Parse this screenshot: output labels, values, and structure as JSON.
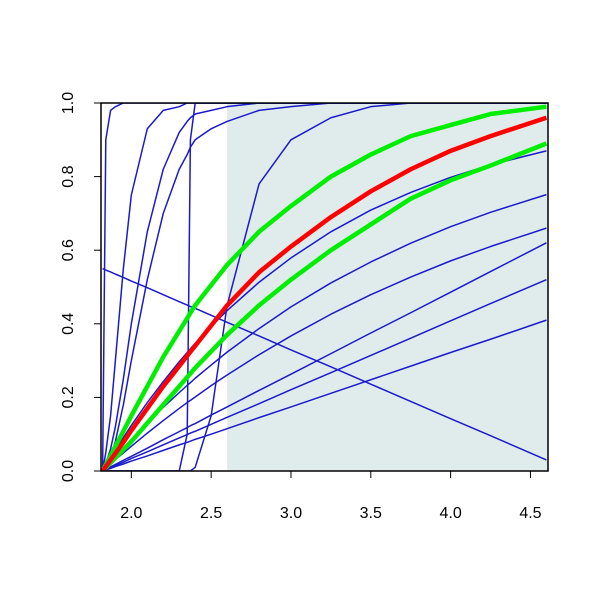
{
  "chart_data": {
    "type": "line",
    "x": [
      1.82,
      1.84,
      1.87,
      1.9,
      1.95,
      2.0,
      2.1,
      2.2,
      2.3,
      2.35,
      2.37,
      2.4,
      2.5,
      2.6,
      2.8,
      3.0,
      3.25,
      3.5,
      3.75,
      4.0,
      4.25,
      4.6
    ],
    "xlim": [
      1.81,
      4.61
    ],
    "ylim": [
      0,
      1
    ],
    "xticks": [
      {
        "value": 2,
        "label": "2.0"
      },
      2.5,
      {
        "value": 3,
        "label": "3.0"
      },
      3.5,
      {
        "value": 4,
        "label": "4.0"
      },
      4.5
    ],
    "yticks": [
      {
        "value": 0,
        "label": "0.0"
      },
      0.2,
      0.4,
      0.6,
      0.8,
      {
        "value": 1,
        "label": "1.0"
      }
    ],
    "shade_from": 2.6,
    "shade_color": "#e0ecec",
    "series": [
      {
        "color": "#1a1acc",
        "width": 1.5,
        "values": [
          0,
          0.9,
          0.98,
          0.99,
          1,
          1,
          1,
          1,
          1,
          1,
          1,
          1,
          1,
          1,
          1,
          1,
          1,
          1,
          1,
          1,
          1,
          1
        ]
      },
      {
        "color": "#1a1acc",
        "width": 1.5,
        "values": [
          0,
          0.05,
          0.15,
          0.3,
          0.55,
          0.75,
          0.93,
          0.98,
          0.99,
          1,
          1,
          1,
          1,
          1,
          1,
          1,
          1,
          1,
          1,
          1,
          1,
          1
        ]
      },
      {
        "color": "#1a1acc",
        "width": 1.5,
        "values": [
          0,
          0.02,
          0.06,
          0.12,
          0.25,
          0.4,
          0.65,
          0.82,
          0.92,
          0.95,
          0.96,
          0.97,
          0.98,
          0.99,
          1,
          1,
          1,
          1,
          1,
          1,
          1,
          1
        ]
      },
      {
        "color": "#1a1acc",
        "width": 1.5,
        "values": [
          0,
          0.01,
          0.04,
          0.08,
          0.18,
          0.3,
          0.52,
          0.7,
          0.82,
          0.86,
          0.88,
          0.9,
          0.93,
          0.95,
          0.98,
          0.99,
          1,
          1,
          1,
          1,
          1,
          1
        ]
      },
      {
        "color": "#1a1acc",
        "width": 1.5,
        "values": [
          0,
          0,
          0,
          0,
          0,
          0,
          0,
          0,
          0,
          0.1,
          0.9,
          1,
          1,
          1,
          1,
          1,
          1,
          1,
          1,
          1,
          1,
          1
        ]
      },
      {
        "color": "#1a1acc",
        "width": 1.5,
        "values": [
          0,
          0,
          0,
          0,
          0,
          0,
          0,
          0,
          0,
          0,
          0,
          0.01,
          0.15,
          0.45,
          0.78,
          0.9,
          0.96,
          0.99,
          1,
          1,
          1,
          1
        ]
      },
      {
        "color": "#1a1acc",
        "width": 1.5,
        "values": [
          0.55,
          0.546,
          0.541,
          0.535,
          0.526,
          0.516,
          0.498,
          0.479,
          0.46,
          0.451,
          0.447,
          0.442,
          0.423,
          0.404,
          0.367,
          0.329,
          0.283,
          0.236,
          0.189,
          0.142,
          0.096,
          0.03
        ]
      },
      {
        "color": "#1a1acc",
        "width": 1.5,
        "values": [
          0,
          0.003,
          0.007,
          0.012,
          0.019,
          0.027,
          0.041,
          0.056,
          0.071,
          0.078,
          0.081,
          0.086,
          0.1,
          0.115,
          0.145,
          0.174,
          0.211,
          0.248,
          0.285,
          0.322,
          0.358,
          0.41
        ]
      },
      {
        "color": "#1a1acc",
        "width": 1.5,
        "values": [
          0,
          0.004,
          0.009,
          0.015,
          0.024,
          0.034,
          0.052,
          0.071,
          0.09,
          0.099,
          0.103,
          0.108,
          0.127,
          0.146,
          0.183,
          0.221,
          0.267,
          0.314,
          0.361,
          0.408,
          0.455,
          0.52
        ]
      },
      {
        "color": "#1a1acc",
        "width": 1.5,
        "values": [
          0,
          0.004,
          0.011,
          0.018,
          0.029,
          0.04,
          0.062,
          0.085,
          0.107,
          0.118,
          0.123,
          0.129,
          0.152,
          0.174,
          0.219,
          0.263,
          0.319,
          0.375,
          0.43,
          0.486,
          0.542,
          0.62
        ]
      },
      {
        "color": "#1a1acc",
        "width": 1.5,
        "values": [
          0,
          0.008,
          0.019,
          0.031,
          0.049,
          0.067,
          0.103,
          0.137,
          0.17,
          0.186,
          0.192,
          0.201,
          0.232,
          0.261,
          0.316,
          0.367,
          0.426,
          0.479,
          0.527,
          0.571,
          0.61,
          0.66
        ]
      },
      {
        "color": "#1a1acc",
        "width": 1.5,
        "values": [
          0,
          0.01,
          0.025,
          0.039,
          0.063,
          0.086,
          0.131,
          0.173,
          0.213,
          0.233,
          0.24,
          0.252,
          0.288,
          0.323,
          0.387,
          0.446,
          0.511,
          0.568,
          0.619,
          0.664,
          0.703,
          0.751
        ]
      },
      {
        "color": "#1a1acc",
        "width": 1.5,
        "values": [
          0,
          0.015,
          0.036,
          0.057,
          0.091,
          0.124,
          0.186,
          0.243,
          0.297,
          0.322,
          0.332,
          0.347,
          0.393,
          0.436,
          0.513,
          0.579,
          0.65,
          0.709,
          0.757,
          0.798,
          0.832,
          0.87
        ]
      },
      {
        "color": "#00ee00",
        "width": 4.5,
        "values": [
          0,
          0.017,
          0.042,
          0.067,
          0.108,
          0.15,
          0.23,
          0.31,
          0.38,
          0.415,
          0.43,
          0.45,
          0.505,
          0.56,
          0.65,
          0.72,
          0.8,
          0.86,
          0.91,
          0.94,
          0.97,
          0.99
        ]
      },
      {
        "color": "#00ee00",
        "width": 4.5,
        "values": [
          0,
          0.009,
          0.022,
          0.036,
          0.058,
          0.08,
          0.13,
          0.18,
          0.23,
          0.255,
          0.265,
          0.28,
          0.325,
          0.37,
          0.45,
          0.52,
          0.6,
          0.67,
          0.74,
          0.79,
          0.83,
          0.89
        ]
      },
      {
        "color": "#ff0000",
        "width": 4.5,
        "values": [
          0,
          0.012,
          0.03,
          0.048,
          0.078,
          0.11,
          0.17,
          0.23,
          0.285,
          0.313,
          0.324,
          0.34,
          0.395,
          0.45,
          0.54,
          0.61,
          0.69,
          0.76,
          0.82,
          0.87,
          0.91,
          0.96
        ]
      }
    ]
  }
}
